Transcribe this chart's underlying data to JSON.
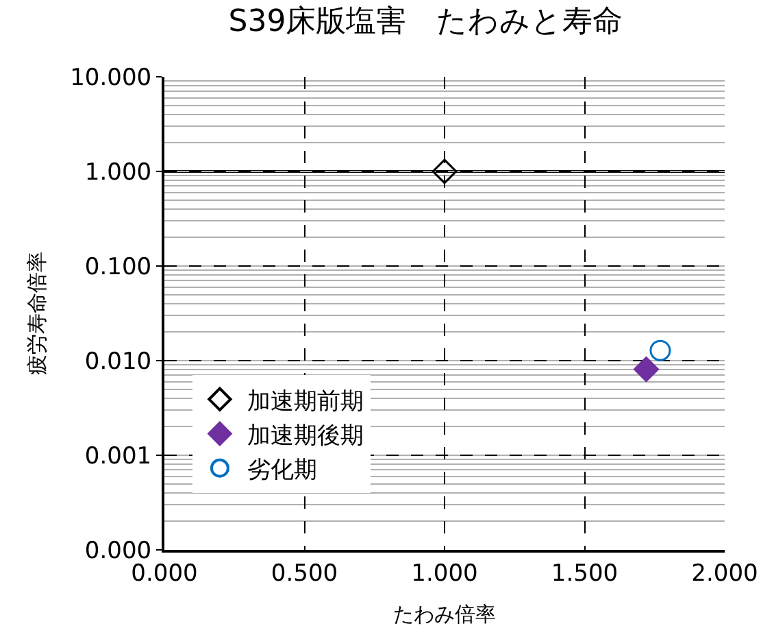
{
  "chart_data": {
    "type": "scatter",
    "title": "S39床版塩害　たわみと寿命",
    "xlabel": "たわみ倍率",
    "ylabel": "疲労寿命倍率",
    "series": [
      {
        "name": "加速期前期",
        "color": "#000000",
        "marker": "diamond-open",
        "x": [
          1.0
        ],
        "values": [
          1.0
        ]
      },
      {
        "name": "加速期後期",
        "color": "#7030a0",
        "marker": "diamond",
        "x": [
          1.72
        ],
        "values": [
          0.0081
        ]
      },
      {
        "name": "劣化期",
        "color": "#0070c0",
        "marker": "circle-open",
        "x": [
          1.77
        ],
        "values": [
          0.0128
        ]
      }
    ],
    "log": "y",
    "xlim": [
      0,
      2
    ],
    "xticks": [
      {
        "value": 0,
        "label": "0.000"
      },
      {
        "value": 0.5,
        "label": "0.500"
      },
      {
        "value": 1,
        "label": "1.000"
      },
      {
        "value": 1.5,
        "label": "1.500"
      },
      {
        "value": 2,
        "label": "2.000"
      }
    ],
    "ylim": [
      0.0001,
      10
    ],
    "yticks": [
      {
        "value": 0.0001,
        "label": "0.000"
      },
      {
        "value": 0.001,
        "label": "0.001"
      },
      {
        "value": 0.01,
        "label": "0.010"
      },
      {
        "value": 0.1,
        "label": "0.100"
      },
      {
        "value": 1,
        "label": "1.000"
      },
      {
        "value": 10,
        "label": "10.000"
      }
    ],
    "ref_lines": [
      {
        "axis": "y",
        "value": 1,
        "label": null,
        "color": "#000000",
        "line_style": "solid"
      }
    ],
    "grid": true,
    "legend": "bottom left"
  }
}
